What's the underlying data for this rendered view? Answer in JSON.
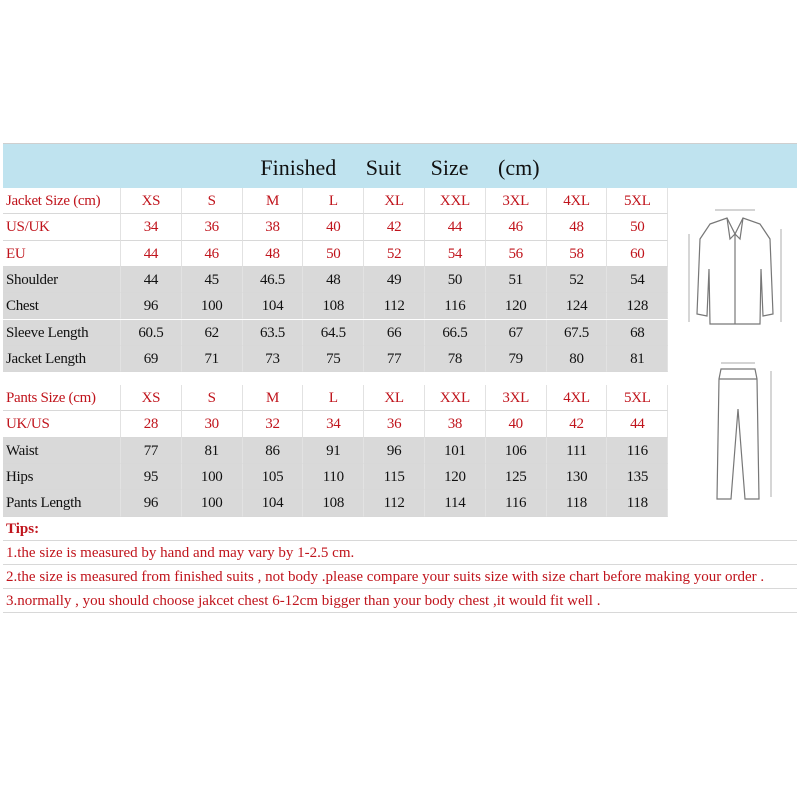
{
  "title": "Finished Suit Size (cm)",
  "jacket": {
    "size_rows": [
      [
        "Jacket Size (cm)",
        "XS",
        "S",
        "M",
        "L",
        "XL",
        "XXL",
        "3XL",
        "4XL",
        "5XL"
      ],
      [
        "US/UK",
        34,
        36,
        38,
        40,
        42,
        44,
        46,
        48,
        50
      ],
      [
        "EU",
        44,
        46,
        48,
        50,
        52,
        54,
        56,
        58,
        60
      ]
    ],
    "measure_rows": [
      [
        "Shoulder",
        44,
        45,
        46.5,
        48,
        49,
        50,
        51,
        52,
        54
      ],
      [
        "Chest",
        96,
        100,
        104,
        108,
        112,
        116,
        120,
        124,
        128
      ],
      [
        "Sleeve Length",
        60.5,
        62,
        63.5,
        64.5,
        66,
        66.5,
        67,
        67.5,
        68
      ],
      [
        "Jacket Length",
        69,
        71,
        73,
        75,
        77,
        78,
        79,
        80,
        81
      ]
    ]
  },
  "pants": {
    "size_rows": [
      [
        "Pants Size (cm)",
        "XS",
        "S",
        "M",
        "L",
        "XL",
        "XXL",
        "3XL",
        "4XL",
        "5XL"
      ],
      [
        "UK/US",
        28,
        30,
        32,
        34,
        36,
        38,
        40,
        42,
        44
      ]
    ],
    "measure_rows": [
      [
        "Waist",
        77,
        81,
        86,
        91,
        96,
        101,
        106,
        111,
        116
      ],
      [
        "Hips",
        95,
        100,
        105,
        110,
        115,
        120,
        125,
        130,
        135
      ],
      [
        "Pants Length",
        96,
        100,
        104,
        108,
        112,
        114,
        116,
        118,
        118
      ]
    ]
  },
  "tips": {
    "heading": "Tips:",
    "items": [
      "1.the size is measured by hand and may vary by 1-2.5 cm.",
      "2.the size is measured from finished suits , not body .please compare your suits size with size chart before making your order .",
      "3.normally , you should choose jakcet chest 6-12cm bigger than your body chest ,it would fit well ."
    ]
  }
}
